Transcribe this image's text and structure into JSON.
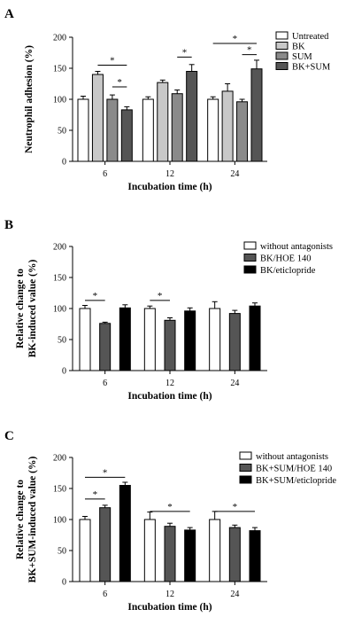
{
  "chart_data": [
    {
      "type": "bar",
      "panel_label": "A",
      "ylabel": "Neutrophil adhesion (%)",
      "xlabel": "Incubation time (h)",
      "ylim": [
        0,
        200
      ],
      "yticks": [
        0,
        50,
        100,
        150,
        200
      ],
      "categories": [
        "6",
        "12",
        "24"
      ],
      "legend_position": "top-right",
      "series": [
        {
          "name": "Untreated",
          "color": "#ffffff",
          "values": [
            100,
            100,
            100
          ],
          "errors": [
            5,
            4,
            4
          ]
        },
        {
          "name": "BK",
          "color": "#c8c8c8",
          "values": [
            140,
            127,
            113
          ],
          "errors": [
            5,
            4,
            12
          ]
        },
        {
          "name": "SUM",
          "color": "#8a8a8a",
          "values": [
            100,
            109,
            96
          ],
          "errors": [
            7,
            6,
            4
          ]
        },
        {
          "name": "BK+SUM",
          "color": "#555555",
          "values": [
            83,
            145,
            149
          ],
          "errors": [
            5,
            11,
            14
          ]
        }
      ],
      "significance": [
        {
          "group": 0,
          "from": 1,
          "to": 3,
          "y": 155,
          "label": "*"
        },
        {
          "group": 0,
          "from": 2,
          "to": 3,
          "y": 120,
          "label": "*"
        },
        {
          "group": 1,
          "from": 2,
          "to": 3,
          "y": 168,
          "label": "*"
        },
        {
          "group": 2,
          "from": 0,
          "to": 3,
          "y": 190,
          "label": "*"
        },
        {
          "group": 2,
          "from": 2,
          "to": 3,
          "y": 172,
          "label": "*"
        }
      ]
    },
    {
      "type": "bar",
      "panel_label": "B",
      "ylabel": "Relative change to BK-induced value (%)",
      "ylabel_lines": [
        "Relative change to",
        "BK-induced value (%)"
      ],
      "xlabel": "Incubation time (h)",
      "ylim": [
        0,
        200
      ],
      "yticks": [
        0,
        50,
        100,
        150,
        200
      ],
      "categories": [
        "6",
        "12",
        "24"
      ],
      "legend_position": "top-right",
      "series": [
        {
          "name": "without antagonists",
          "color": "#ffffff",
          "values": [
            100,
            100,
            100
          ],
          "errors": [
            5,
            4,
            11
          ]
        },
        {
          "name": "BK/HOE 140",
          "color": "#555555",
          "values": [
            76,
            81,
            92
          ],
          "errors": [
            2,
            4,
            5
          ]
        },
        {
          "name": "BK/eticlopride",
          "color": "#000000",
          "values": [
            101,
            96,
            104
          ],
          "errors": [
            5,
            5,
            5
          ]
        }
      ],
      "significance": [
        {
          "group": 0,
          "from": 0,
          "to": 1,
          "y": 113,
          "label": "*"
        },
        {
          "group": 1,
          "from": 0,
          "to": 1,
          "y": 113,
          "label": "*"
        }
      ]
    },
    {
      "type": "bar",
      "panel_label": "C",
      "ylabel": "Relative change to BK+SUM-induced value (%)",
      "ylabel_lines": [
        "Relative change to",
        "BK+SUM-induced value (%)"
      ],
      "xlabel": "Incubation time (h)",
      "ylim": [
        0,
        200
      ],
      "yticks": [
        0,
        50,
        100,
        150,
        200
      ],
      "categories": [
        "6",
        "12",
        "24"
      ],
      "legend_position": "top-right",
      "series": [
        {
          "name": "without antagonists",
          "color": "#ffffff",
          "values": [
            100,
            100,
            100
          ],
          "errors": [
            5,
            12,
            13
          ]
        },
        {
          "name": "BK+SUM/HOE 140",
          "color": "#555555",
          "values": [
            119,
            89,
            87
          ],
          "errors": [
            4,
            5,
            4
          ]
        },
        {
          "name": "BK+SUM/eticlopride",
          "color": "#000000",
          "values": [
            155,
            83,
            82
          ],
          "errors": [
            5,
            4,
            5
          ]
        }
      ],
      "significance": [
        {
          "group": 0,
          "from": 0,
          "to": 2,
          "y": 168,
          "label": "*"
        },
        {
          "group": 0,
          "from": 0,
          "to": 1,
          "y": 133,
          "label": "*"
        },
        {
          "group": 1,
          "from": 0,
          "to": 2,
          "y": 113,
          "label": "*"
        },
        {
          "group": 2,
          "from": 0,
          "to": 2,
          "y": 113,
          "label": "*"
        }
      ]
    }
  ]
}
